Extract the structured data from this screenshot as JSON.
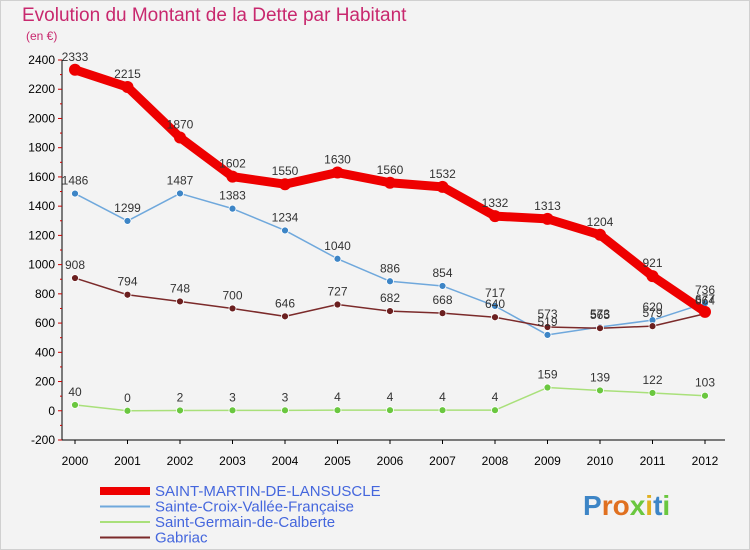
{
  "chart_data": {
    "type": "line",
    "title": "Evolution du Montant de la Dette par Habitant",
    "subtitle": "(en €)",
    "xlabel": "",
    "ylabel": "",
    "x": [
      "2000",
      "2001",
      "2002",
      "2003",
      "2004",
      "2005",
      "2006",
      "2007",
      "2008",
      "2009",
      "2010",
      "2011",
      "2012"
    ],
    "ylim": [
      -200,
      2400
    ],
    "yticks": [
      -200,
      0,
      200,
      400,
      600,
      800,
      1000,
      1200,
      1400,
      1600,
      1800,
      2000,
      2200,
      2400
    ],
    "grid": false,
    "legend_position": "bottom-left",
    "series": [
      {
        "name": "SAINT-MARTIN-DE-LANSUSCLE",
        "color": "#ee0000",
        "emphasis": true,
        "values": [
          2333,
          2215,
          1870,
          1602,
          1550,
          1630,
          1560,
          1532,
          1332,
          1313,
          1204,
          921,
          677
        ],
        "labels": [
          "2333",
          "2215",
          "1870",
          "1602",
          "1550",
          "1630",
          "1560",
          "1532",
          "1332",
          "1313",
          "1204",
          "921",
          "677"
        ]
      },
      {
        "name": "Sainte-Croix-Vallée-Française",
        "color": "#6fa8dc",
        "marker_color": "#3d85c6",
        "values": [
          1486,
          1299,
          1487,
          1383,
          1234,
          1040,
          886,
          854,
          717,
          519,
          573,
          620,
          736
        ],
        "labels": [
          "1486",
          "1299",
          "1487",
          "1383",
          "1234",
          "1040",
          "886",
          "854",
          "717",
          "519",
          "573",
          "620",
          "736"
        ]
      },
      {
        "name": "Saint-Germain-de-Calberte",
        "color": "#a9e07a",
        "marker_color": "#6ac73f",
        "values": [
          40,
          0,
          2,
          3,
          3,
          4,
          4,
          4,
          4,
          159,
          139,
          122,
          103
        ],
        "labels": [
          "40",
          "0",
          "2",
          "3",
          "3",
          "4",
          "4",
          "4",
          "4",
          "159",
          "139",
          "122",
          "103"
        ]
      },
      {
        "name": "Gabriac",
        "color": "#7b2a2a",
        "marker_color": "#6b1f1f",
        "values": [
          908,
          794,
          748,
          700,
          646,
          727,
          682,
          668,
          640,
          573,
          565,
          579,
          664
        ],
        "labels": [
          "908",
          "794",
          "748",
          "700",
          "646",
          "727",
          "682",
          "668",
          "640",
          "573",
          "565",
          "579",
          "664"
        ]
      }
    ]
  },
  "legend_colors": {
    "text": "#4466dd"
  },
  "logo": {
    "text": "Proxiti",
    "colors": [
      "#3d85c6",
      "#e07020",
      "#e07020",
      "#6ac73f",
      "#e0b020",
      "#3d85c6",
      "#6ac73f"
    ]
  }
}
